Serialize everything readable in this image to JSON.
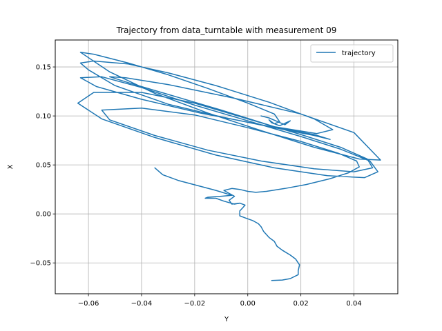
{
  "chart_data": {
    "type": "line",
    "title": "Trajectory from data_turntable with measurement 09",
    "xlabel": "Y",
    "ylabel": "X",
    "xlim": [
      -0.0725,
      0.0565
    ],
    "ylim": [
      -0.0815,
      0.1775
    ],
    "grid": true,
    "legend_position": "top-right",
    "x_ticks": [
      -0.06,
      -0.04,
      -0.02,
      0.0,
      0.02,
      0.04
    ],
    "x_tick_labels": [
      "−0.06",
      "−0.04",
      "−0.02",
      "0.00",
      "0.02",
      "0.04"
    ],
    "y_ticks": [
      -0.05,
      0.0,
      0.05,
      0.1,
      0.15
    ],
    "y_tick_labels": [
      "−0.05",
      "0.00",
      "0.05",
      "0.10",
      "0.15"
    ],
    "series": [
      {
        "name": "trajectory",
        "color": "#1f77b4",
        "points": [
          [
            0.009,
            -0.068
          ],
          [
            0.013,
            -0.0675
          ],
          [
            0.016,
            -0.066
          ],
          [
            0.019,
            -0.062
          ],
          [
            0.019,
            -0.058
          ],
          [
            0.0195,
            -0.052
          ],
          [
            0.018,
            -0.046
          ],
          [
            0.016,
            -0.042
          ],
          [
            0.013,
            -0.037
          ],
          [
            0.011,
            -0.033
          ],
          [
            0.01,
            -0.028
          ],
          [
            0.008,
            -0.024
          ],
          [
            0.006,
            -0.018
          ],
          [
            0.005,
            -0.013
          ],
          [
            0.004,
            -0.01
          ],
          [
            0.002,
            -0.007
          ],
          [
            -0.001,
            -0.004
          ],
          [
            -0.003,
            -0.002
          ],
          [
            -0.003,
            0.003
          ],
          [
            -0.002,
            0.006
          ],
          [
            -0.001,
            0.009
          ],
          [
            -0.003,
            0.011
          ],
          [
            -0.006,
            0.01
          ],
          [
            -0.007,
            0.014
          ],
          [
            -0.005,
            0.018
          ],
          [
            -0.007,
            0.021
          ],
          [
            -0.009,
            0.024
          ],
          [
            -0.006,
            0.026
          ],
          [
            -0.003,
            0.025
          ],
          [
            0.0,
            0.023
          ],
          [
            0.003,
            0.022
          ],
          [
            0.007,
            0.023
          ],
          [
            0.014,
            0.026
          ],
          [
            0.022,
            0.03
          ],
          [
            0.031,
            0.036
          ],
          [
            0.038,
            0.042
          ],
          [
            0.042,
            0.048
          ],
          [
            0.041,
            0.054
          ],
          [
            0.034,
            0.062
          ],
          [
            0.02,
            0.074
          ],
          [
            0.0,
            0.088
          ],
          [
            -0.02,
            0.101
          ],
          [
            -0.04,
            0.108
          ],
          [
            -0.055,
            0.106
          ],
          [
            -0.052,
            0.096
          ],
          [
            -0.035,
            0.08
          ],
          [
            -0.015,
            0.065
          ],
          [
            0.005,
            0.054
          ],
          [
            0.025,
            0.046
          ],
          [
            0.04,
            0.043
          ],
          [
            0.047,
            0.047
          ],
          [
            0.045,
            0.056
          ],
          [
            0.035,
            0.068
          ],
          [
            0.02,
            0.081
          ],
          [
            0.0,
            0.097
          ],
          [
            -0.02,
            0.113
          ],
          [
            -0.04,
            0.124
          ],
          [
            -0.058,
            0.124
          ],
          [
            -0.064,
            0.113
          ],
          [
            -0.055,
            0.097
          ],
          [
            -0.035,
            0.078
          ],
          [
            -0.012,
            0.06
          ],
          [
            0.01,
            0.047
          ],
          [
            0.03,
            0.039
          ],
          [
            0.044,
            0.037
          ],
          [
            0.049,
            0.043
          ],
          [
            0.046,
            0.054
          ],
          [
            0.035,
            0.066
          ],
          [
            0.02,
            0.079
          ],
          [
            0.0,
            0.095
          ],
          [
            -0.02,
            0.111
          ],
          [
            -0.04,
            0.129
          ],
          [
            -0.055,
            0.14
          ],
          [
            -0.063,
            0.139
          ],
          [
            -0.057,
            0.13
          ],
          [
            -0.04,
            0.117
          ],
          [
            -0.018,
            0.103
          ],
          [
            0.005,
            0.091
          ],
          [
            0.025,
            0.081
          ],
          [
            0.031,
            0.076
          ],
          [
            0.025,
            0.08
          ],
          [
            0.01,
            0.088
          ],
          [
            -0.01,
            0.099
          ],
          [
            -0.03,
            0.112
          ],
          [
            -0.05,
            0.131
          ],
          [
            -0.06,
            0.147
          ],
          [
            -0.063,
            0.154
          ],
          [
            -0.058,
            0.156
          ],
          [
            -0.045,
            0.153
          ],
          [
            -0.03,
            0.144
          ],
          [
            -0.012,
            0.131
          ],
          [
            0.008,
            0.114
          ],
          [
            0.025,
            0.097
          ],
          [
            0.032,
            0.086
          ],
          [
            0.026,
            0.082
          ],
          [
            0.01,
            0.089
          ],
          [
            -0.01,
            0.106
          ],
          [
            -0.03,
            0.122
          ],
          [
            -0.045,
            0.134
          ],
          [
            -0.052,
            0.14
          ],
          [
            -0.046,
            0.139
          ],
          [
            -0.03,
            0.132
          ],
          [
            -0.005,
            0.118
          ],
          [
            0.02,
            0.102
          ],
          [
            0.04,
            0.083
          ],
          [
            0.05,
            0.055
          ],
          [
            0.042,
            0.056
          ],
          [
            0.025,
            0.068
          ],
          [
            0.005,
            0.085
          ],
          [
            -0.015,
            0.103
          ],
          [
            -0.035,
            0.123
          ],
          [
            -0.052,
            0.145
          ],
          [
            -0.063,
            0.165
          ],
          [
            -0.058,
            0.163
          ],
          [
            -0.045,
            0.154
          ],
          [
            -0.03,
            0.142
          ],
          [
            -0.015,
            0.128
          ],
          [
            0.0,
            0.113
          ],
          [
            0.01,
            0.102
          ],
          [
            0.012,
            0.094
          ],
          [
            0.01,
            0.092
          ],
          [
            0.008,
            0.096
          ],
          [
            0.009,
            0.093
          ],
          [
            0.012,
            0.09
          ],
          [
            0.016,
            0.095
          ],
          [
            0.014,
            0.091
          ],
          [
            0.008,
            0.098
          ],
          [
            0.005,
            0.1
          ]
        ]
      },
      {
        "name": "",
        "color": "#1f77b4",
        "points": [
          [
            -0.035,
            0.047
          ],
          [
            -0.032,
            0.04
          ],
          [
            -0.026,
            0.034
          ],
          [
            -0.019,
            0.029
          ],
          [
            -0.012,
            0.024
          ],
          [
            -0.006,
            0.019
          ],
          [
            -0.01,
            0.018
          ],
          [
            -0.015,
            0.017
          ],
          [
            -0.016,
            0.016
          ],
          [
            -0.012,
            0.016
          ],
          [
            -0.009,
            0.013
          ],
          [
            -0.005,
            0.01
          ],
          [
            -0.003,
            0.011
          ]
        ]
      }
    ]
  }
}
